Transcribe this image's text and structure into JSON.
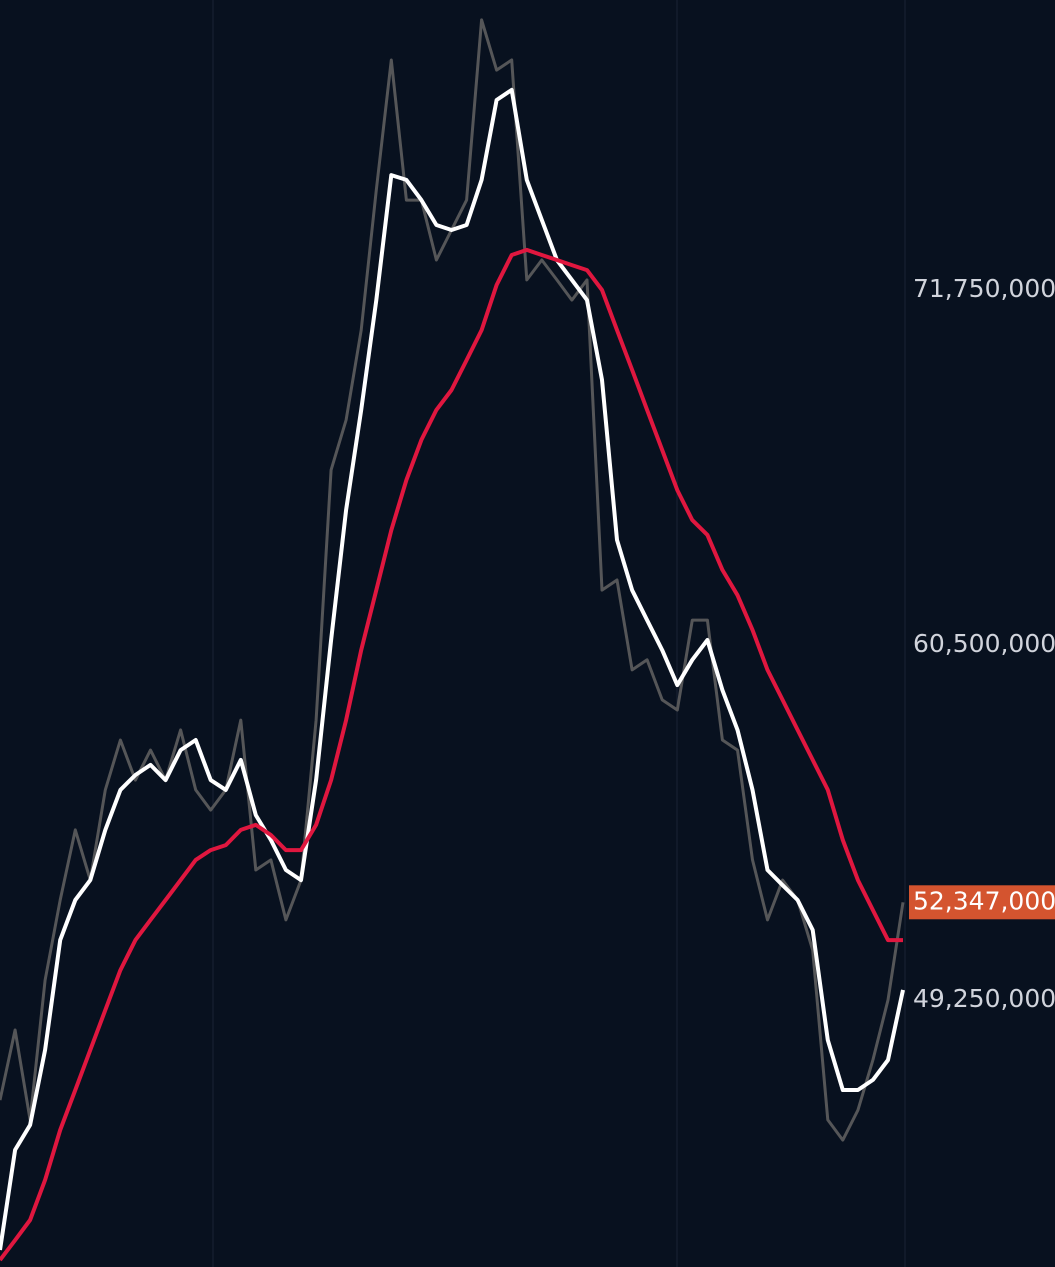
{
  "chart_data": {
    "type": "line",
    "ylim": [
      40790000,
      80940000
    ],
    "yticks": [
      {
        "value": 49250000,
        "label": "49,250,000"
      },
      {
        "value": 60500000,
        "label": "60,500,000"
      },
      {
        "value": 71750000,
        "label": "71,750,000"
      }
    ],
    "last_price": {
      "value": 52347000,
      "label": "52,347,000",
      "color": "#d4542f"
    },
    "series": [
      {
        "color": "#555658",
        "values": [
          46080000,
          48300000,
          45450000,
          49880000,
          52420000,
          54640000,
          53050000,
          55910000,
          57490000,
          56220000,
          57170000,
          56220000,
          57810000,
          55910000,
          55270000,
          55910000,
          58120000,
          53370000,
          53690000,
          51790000,
          53050000,
          58120000,
          66050000,
          67630000,
          70480000,
          74920000,
          79040000,
          74600000,
          74600000,
          72700000,
          73650000,
          74600000,
          80310000,
          78720000,
          79040000,
          72070000,
          72700000,
          72070000,
          71430000,
          72070000,
          62240000,
          62560000,
          59710000,
          60030000,
          58760000,
          58440000,
          61290000,
          61290000,
          57490000,
          57170000,
          53690000,
          51790000,
          53050000,
          52420000,
          50830000,
          45450000,
          44810000,
          45760000,
          47350000,
          49250000,
          52347000
        ]
      },
      {
        "color": "#ffffff",
        "values": [
          41330000,
          44500000,
          45290000,
          47670000,
          51150000,
          52420000,
          53050000,
          54640000,
          55910000,
          56380000,
          56700000,
          56220000,
          57170000,
          57490000,
          56220000,
          55910000,
          56860000,
          55110000,
          54320000,
          53370000,
          53050000,
          56220000,
          60660000,
          64780000,
          67950000,
          71430000,
          75390000,
          75240000,
          74600000,
          73810000,
          73650000,
          73810000,
          75240000,
          77770000,
          78090000,
          75240000,
          73970000,
          72700000,
          72070000,
          71430000,
          68900000,
          63830000,
          62240000,
          61290000,
          60340000,
          59230000,
          60030000,
          60660000,
          59070000,
          57810000,
          55910000,
          53370000,
          52890000,
          52420000,
          51470000,
          47980000,
          46400000,
          46400000,
          46720000,
          47350000,
          49570000
        ]
      },
      {
        "color": "#e0173f",
        "values": [
          41010000,
          41640000,
          42280000,
          43550000,
          45130000,
          46400000,
          47670000,
          48930000,
          50200000,
          51150000,
          51790000,
          52420000,
          53050000,
          53690000,
          54000000,
          54160000,
          54640000,
          54800000,
          54480000,
          54000000,
          54000000,
          54800000,
          56220000,
          58120000,
          60340000,
          62240000,
          64140000,
          65730000,
          67000000,
          67950000,
          68580000,
          69530000,
          70480000,
          71910000,
          72860000,
          73020000,
          72860000,
          72700000,
          72540000,
          72380000,
          71750000,
          70480000,
          69220000,
          67950000,
          66680000,
          65410000,
          64460000,
          63990000,
          62880000,
          62080000,
          60980000,
          59710000,
          58760000,
          57810000,
          56860000,
          55910000,
          54320000,
          53050000,
          52100000,
          51150000,
          51150000
        ]
      }
    ]
  }
}
